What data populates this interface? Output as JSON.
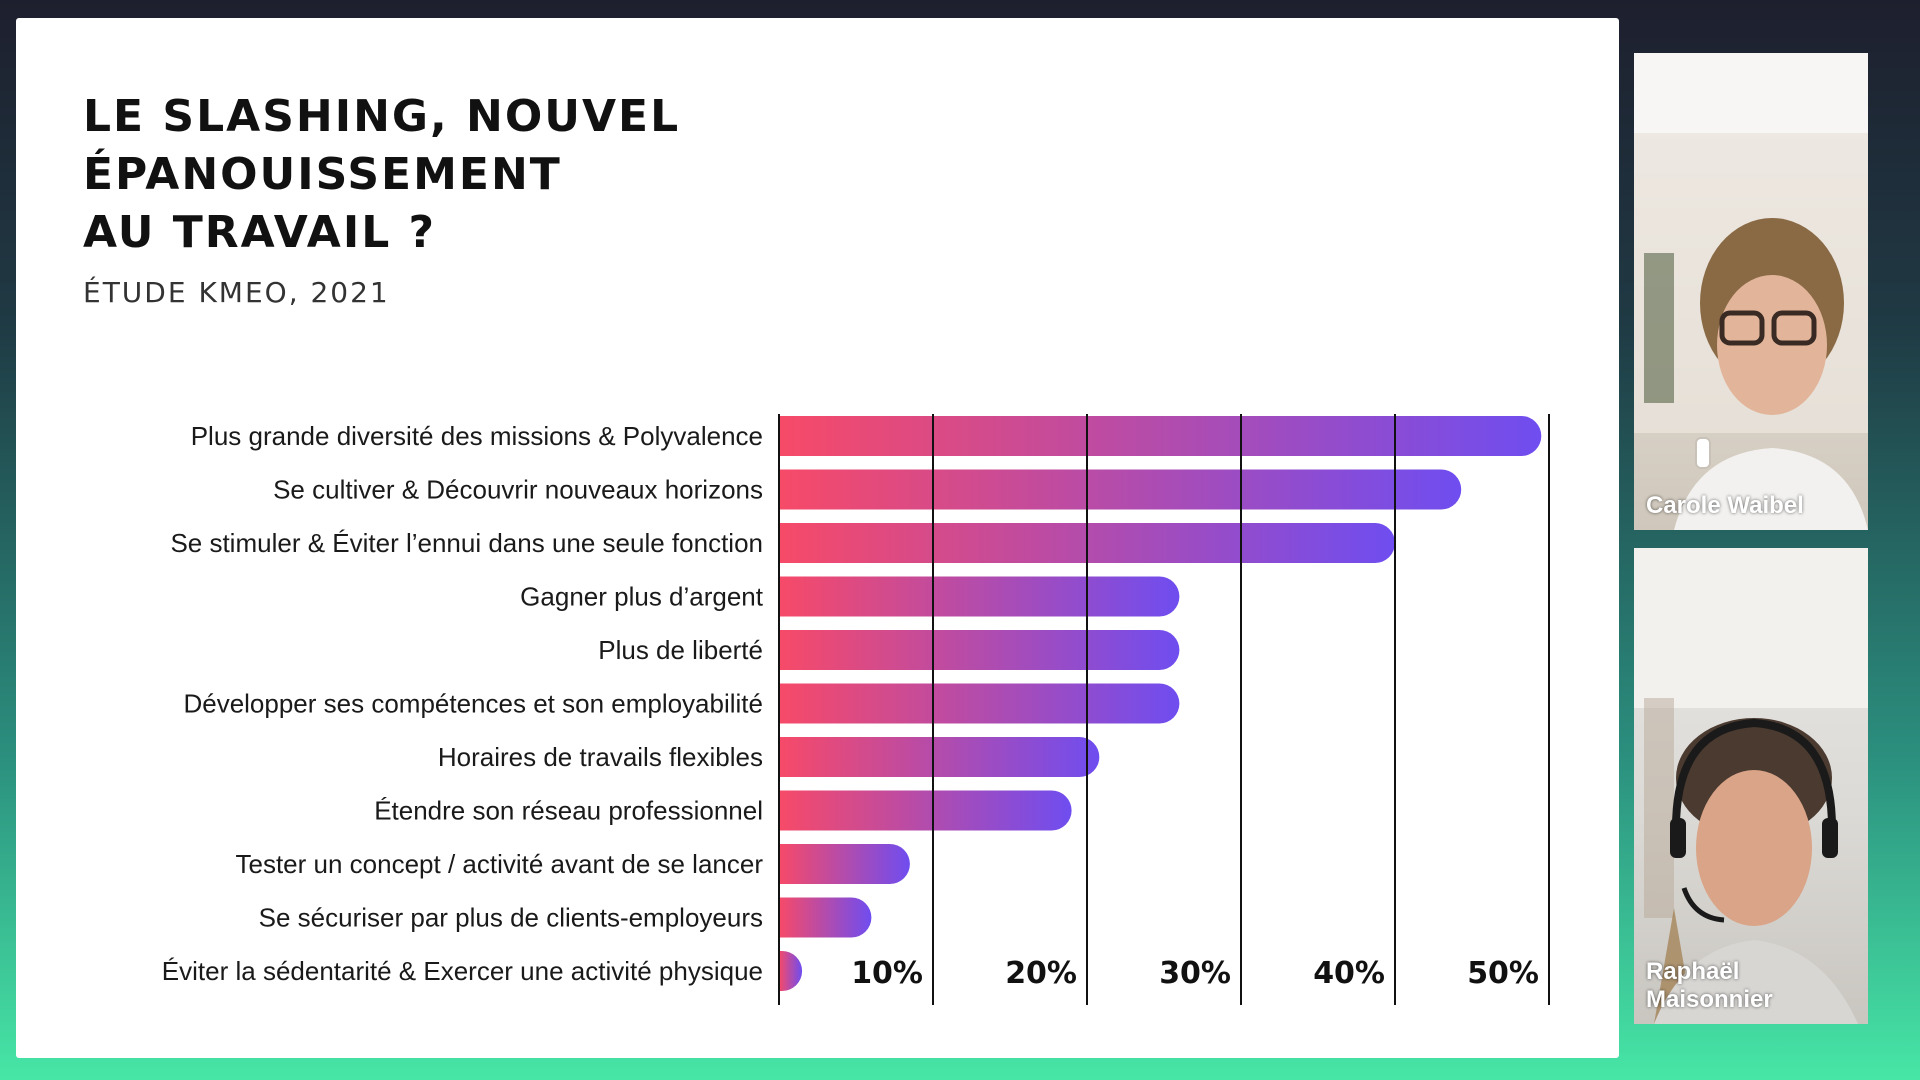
{
  "slide": {
    "title_lines": [
      "LE SLASHING, NOUVEL",
      "ÉPANOUISSEMENT",
      "AU TRAVAIL ?"
    ],
    "subtitle": "ÉTUDE KMEO, 2021"
  },
  "chart_data": {
    "type": "bar",
    "orientation": "horizontal",
    "title": "LE SLASHING, NOUVEL ÉPANOUISSEMENT AU TRAVAIL ?",
    "subtitle": "ÉTUDE KMEO, 2021",
    "xlabel": "",
    "ylabel": "",
    "xlim": [
      0,
      50
    ],
    "grid": true,
    "categories": [
      "Plus grande diversité des missions & Polyvalence",
      "Se cultiver & Découvrir nouveaux horizons",
      "Se stimuler & Éviter l’ennui dans une seule fonction",
      "Gagner plus d’argent",
      "Plus de liberté",
      "Développer ses compétences et son employabilité",
      "Horaires de travails flexibles",
      "Étendre son réseau professionnel",
      "Tester un concept / activité avant de se lancer",
      "Se sécuriser par plus de clients-employeurs",
      "Éviter la sédentarité & Exercer une activité physique"
    ],
    "values": [
      49.5,
      44.3,
      40,
      26,
      26,
      26,
      20.8,
      19,
      8.5,
      6,
      1.5
    ],
    "x_ticks": [
      10,
      20,
      30,
      40,
      50
    ],
    "x_tick_labels": [
      "10%",
      "20%",
      "30%",
      "40%",
      "50%"
    ],
    "colors": {
      "gradient_start": "#f74a68",
      "gradient_end": "#6f4df0"
    }
  },
  "participants": [
    {
      "name": "Carole Waibel"
    },
    {
      "name": "Raphaël Maisonnier"
    }
  ]
}
